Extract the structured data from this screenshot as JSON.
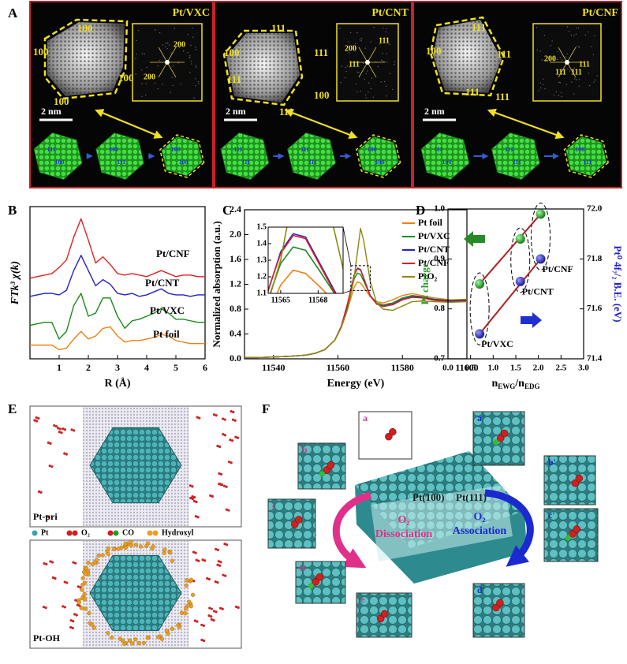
{
  "panel_labels": [
    "A",
    "B",
    "C",
    "D",
    "E",
    "F"
  ],
  "panel_a": {
    "subpanels": [
      {
        "title": "Pt/VXC",
        "facets": [
          "100",
          "100",
          "100",
          "100"
        ],
        "fft_labels": [
          "200",
          "200"
        ],
        "scale_bar": "2 nm",
        "model_labels": [
          "111",
          "100",
          "100",
          "100",
          "111",
          "100"
        ]
      },
      {
        "title": "Pt/CNT",
        "facets": [
          "111",
          "100",
          "111",
          "111",
          "100",
          "111"
        ],
        "fft_labels": [
          "111",
          "200",
          "111"
        ],
        "scale_bar": "2 nm",
        "model_labels": [
          "111",
          "111",
          "100",
          "111",
          "111",
          "100"
        ]
      },
      {
        "title": "Pt/CNF",
        "facets": [
          "111",
          "100",
          "111",
          "111",
          "111"
        ],
        "fft_labels": [
          "200",
          "111",
          "111",
          "111"
        ],
        "scale_bar": "2 nm",
        "model_labels": [
          "111",
          "111",
          "100",
          "100",
          "111",
          "111"
        ]
      }
    ]
  },
  "chart_data": [
    {
      "type": "line",
      "x": [
        0,
        0.25,
        0.5,
        0.75,
        1,
        1.25,
        1.5,
        1.75,
        2,
        2.25,
        2.5,
        2.75,
        3,
        3.25,
        3.5,
        3.75,
        4,
        4.25,
        4.5,
        4.75,
        5,
        5.25,
        5.5,
        5.75,
        6
      ],
      "xlim": [
        0,
        6
      ],
      "xticks": [
        1,
        2,
        3,
        4,
        5,
        6
      ],
      "ylim": [
        0,
        10
      ],
      "x_label": "R (Å)",
      "y_label": "FTk³ χ(k)",
      "series": [
        {
          "name": "Pt/CNF",
          "color": "#e02020",
          "values": [
            5.3,
            5.4,
            5.5,
            5.6,
            6.0,
            6.5,
            8.0,
            9.2,
            7.8,
            6.3,
            6.7,
            6.2,
            5.6,
            5.5,
            5.6,
            5.5,
            5.4,
            5.6,
            5.8,
            5.6,
            5.4,
            5.5,
            5.5,
            5.4,
            5.4
          ]
        },
        {
          "name": "Pt/CNT",
          "color": "#2222cc",
          "values": [
            4.1,
            4.2,
            4.3,
            4.3,
            4.2,
            4.5,
            5.8,
            6.8,
            5.8,
            4.8,
            5.2,
            4.9,
            4.3,
            4.2,
            4.3,
            4.1,
            4.2,
            4.4,
            4.6,
            4.3,
            4.2,
            4.2,
            4.1,
            4.2,
            4.2
          ]
        },
        {
          "name": "Pt/VXC",
          "color": "#1a8a1a",
          "values": [
            2.2,
            2.3,
            2.4,
            2.4,
            1.3,
            1.8,
            3.5,
            4.3,
            2.8,
            3.0,
            4.0,
            4.0,
            2.8,
            2.0,
            2.5,
            2.6,
            2.8,
            3.0,
            3.3,
            3.0,
            2.6,
            2.6,
            2.5,
            2.4,
            2.4
          ]
        },
        {
          "name": "Pt foil",
          "color": "#f08010",
          "values": [
            0.9,
            0.9,
            0.9,
            0.9,
            0.6,
            0.7,
            1.3,
            1.8,
            1.3,
            1.5,
            2.0,
            2.1,
            1.5,
            1.1,
            1.2,
            1.2,
            1.3,
            1.4,
            1.6,
            1.5,
            1.2,
            1.1,
            1.0,
            1.0,
            1.0
          ]
        }
      ]
    },
    {
      "type": "line",
      "x": [
        11531,
        11535,
        11540,
        11545,
        11550,
        11553,
        11556,
        11559,
        11561,
        11563,
        11565,
        11566,
        11567,
        11568,
        11570,
        11572,
        11574,
        11577,
        11580,
        11583,
        11586,
        11590,
        11595,
        11600
      ],
      "xlim": [
        11531,
        11600
      ],
      "xticks": [
        11540,
        11560,
        11580,
        11600
      ],
      "ylim": [
        0,
        2.4
      ],
      "yticks": [
        {
          "value": 0,
          "label": "0.0"
        },
        0.4,
        0.8,
        1.2,
        1.6,
        {
          "value": 2,
          "label": "2.0"
        },
        2.4
      ],
      "x_label": "Energy (eV)",
      "y_label": "Normalized absorption (a.u.)",
      "legend": "upper right",
      "inset": {
        "xlim": [
          11564,
          11570
        ],
        "ylim": [
          1.1,
          1.5
        ],
        "xticks": [
          11565,
          11568
        ],
        "yticks": [
          1.1,
          1.2,
          1.3,
          1.4,
          1.5
        ]
      },
      "series": [
        {
          "name": "Pt foil",
          "color": "#f08010",
          "values": [
            0.02,
            0.02,
            0.03,
            0.04,
            0.06,
            0.09,
            0.15,
            0.3,
            0.5,
            0.8,
            1.15,
            1.24,
            1.22,
            1.15,
            1.0,
            0.92,
            0.9,
            0.95,
            1.02,
            1.05,
            1.02,
            0.98,
            0.95,
            0.96
          ]
        },
        {
          "name": "Pt/VXC",
          "color": "#1a8a1a",
          "values": [
            0.02,
            0.02,
            0.03,
            0.04,
            0.06,
            0.09,
            0.15,
            0.3,
            0.5,
            0.85,
            1.28,
            1.38,
            1.36,
            1.25,
            1.02,
            0.9,
            0.87,
            0.9,
            0.98,
            1.02,
            1.0,
            0.96,
            0.94,
            0.95
          ]
        },
        {
          "name": "Pt/CNT",
          "color": "#2222cc",
          "values": [
            0.02,
            0.02,
            0.03,
            0.04,
            0.06,
            0.09,
            0.15,
            0.3,
            0.52,
            0.88,
            1.35,
            1.46,
            1.44,
            1.3,
            1.02,
            0.88,
            0.85,
            0.88,
            0.96,
            1.0,
            0.99,
            0.95,
            0.93,
            0.94
          ]
        },
        {
          "name": "Pt/CNF",
          "color": "#e02020",
          "values": [
            0.02,
            0.02,
            0.03,
            0.04,
            0.06,
            0.09,
            0.15,
            0.3,
            0.52,
            0.9,
            1.34,
            1.45,
            1.43,
            1.29,
            1.01,
            0.88,
            0.84,
            0.87,
            0.95,
            0.99,
            0.98,
            0.94,
            0.92,
            0.93
          ]
        },
        {
          "name": "PtO₂",
          "color": "#8a8a10",
          "values": [
            0.02,
            0.02,
            0.03,
            0.04,
            0.06,
            0.09,
            0.15,
            0.3,
            0.5,
            0.8,
            1.3,
            1.7,
            2.1,
            1.9,
            1.25,
            0.9,
            0.8,
            0.78,
            0.85,
            0.92,
            0.93,
            0.92,
            0.91,
            0.92
          ]
        }
      ]
    },
    {
      "type": "scatter",
      "x": [
        0.7,
        1.6,
        2.05
      ],
      "xlim": [
        0,
        3
      ],
      "xticks": [
        {
          "value": 0,
          "label": "0.0"
        },
        0.5,
        {
          "value": 1,
          "label": "1.0"
        },
        1.5,
        {
          "value": 2,
          "label": "2.0"
        },
        2.5,
        {
          "value": 3,
          "label": "3.0"
        }
      ],
      "ylim": [
        0.7,
        1
      ],
      "yticks": [
        0.7,
        0.8,
        0.9,
        {
          "value": 1,
          "label": "1.0"
        }
      ],
      "y2lim": [
        71.4,
        72
      ],
      "y2ticks": [
        71.4,
        71.6,
        71.8,
        {
          "value": 72,
          "label": "72.0"
        }
      ],
      "x_label": [
        "n",
        "EWG",
        "/n",
        "EDG"
      ],
      "y_label": "Pt charge",
      "y2_label": "Pt⁰ 4f₇/₂ B.E. (eV)",
      "point_labels": [
        "Pt/VXC",
        "Pt/CNT",
        "Pt/CNF"
      ],
      "series": [
        {
          "color": "#2a9a2a",
          "values": [
            0.85,
            0.94,
            0.99
          ]
        },
        {
          "color": "#2222c0",
          "axis": "y2",
          "values": [
            71.5,
            71.71,
            71.8
          ]
        }
      ]
    }
  ],
  "panel_e": {
    "top_label": "Pt-pri",
    "bottom_label": "Pt-OH",
    "legend": [
      "Pt",
      "O₂",
      "CO",
      "Hydroxyl"
    ]
  },
  "panel_f": {
    "facets": [
      "Pt(100)",
      "Pt(111)"
    ],
    "left_process": [
      "O₂",
      "Dissociation"
    ],
    "right_process": [
      "O₂",
      "Association"
    ],
    "snapshots": [
      "a",
      "b",
      "c",
      "d",
      "e",
      "a'",
      "b'",
      "c'",
      "d'"
    ]
  }
}
